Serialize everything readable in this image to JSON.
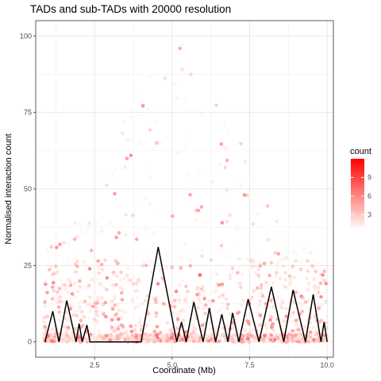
{
  "chart_data": {
    "type": "scatter",
    "title": "TADs and sub-TADs with 20000 resolution",
    "xlabel": "Coordinate (Mb)",
    "ylabel": "Normalised interaction count",
    "xlim": [
      0.6,
      10.2
    ],
    "ylim": [
      -5,
      105
    ],
    "x_ticks": [
      2.5,
      5.0,
      7.5,
      10.0
    ],
    "x_tick_labels": [
      "2.5",
      "5.0",
      "7.5",
      "10.0"
    ],
    "y_ticks": [
      0,
      25,
      50,
      75,
      100
    ],
    "y_tick_labels": [
      "0",
      "25",
      "50",
      "75",
      "100"
    ],
    "grid": true,
    "legend": {
      "title": "count",
      "placement": "right",
      "min": 1,
      "max": 12,
      "ticks": [
        3,
        6,
        9
      ],
      "tick_labels": [
        "3",
        "6",
        "9"
      ],
      "color_low": "#fff5f0",
      "color_high": "#ff0000"
    },
    "series": [
      {
        "type": "line",
        "color": "#000000",
        "points": [
          [
            0.9,
            0
          ],
          [
            1.15,
            10
          ],
          [
            1.35,
            0
          ],
          [
            1.6,
            13.5
          ],
          [
            1.9,
            0
          ],
          [
            2.0,
            6
          ],
          [
            2.1,
            0
          ],
          [
            2.25,
            5.5
          ],
          [
            2.35,
            0
          ],
          [
            4.0,
            0
          ],
          [
            4.55,
            31
          ],
          [
            5.15,
            0
          ],
          [
            5.3,
            6.5
          ],
          [
            5.45,
            0
          ],
          [
            5.7,
            13
          ],
          [
            6.0,
            0
          ],
          [
            6.2,
            11
          ],
          [
            6.4,
            0
          ],
          [
            6.6,
            9
          ],
          [
            6.8,
            0
          ],
          [
            6.95,
            9.5
          ],
          [
            7.15,
            0
          ],
          [
            7.45,
            14
          ],
          [
            7.8,
            0
          ],
          [
            8.2,
            18
          ],
          [
            8.6,
            0
          ],
          [
            8.9,
            17
          ],
          [
            9.3,
            0
          ],
          [
            9.55,
            15.5
          ],
          [
            9.8,
            0
          ],
          [
            9.9,
            6.5
          ],
          [
            10.0,
            0
          ]
        ]
      }
    ]
  }
}
